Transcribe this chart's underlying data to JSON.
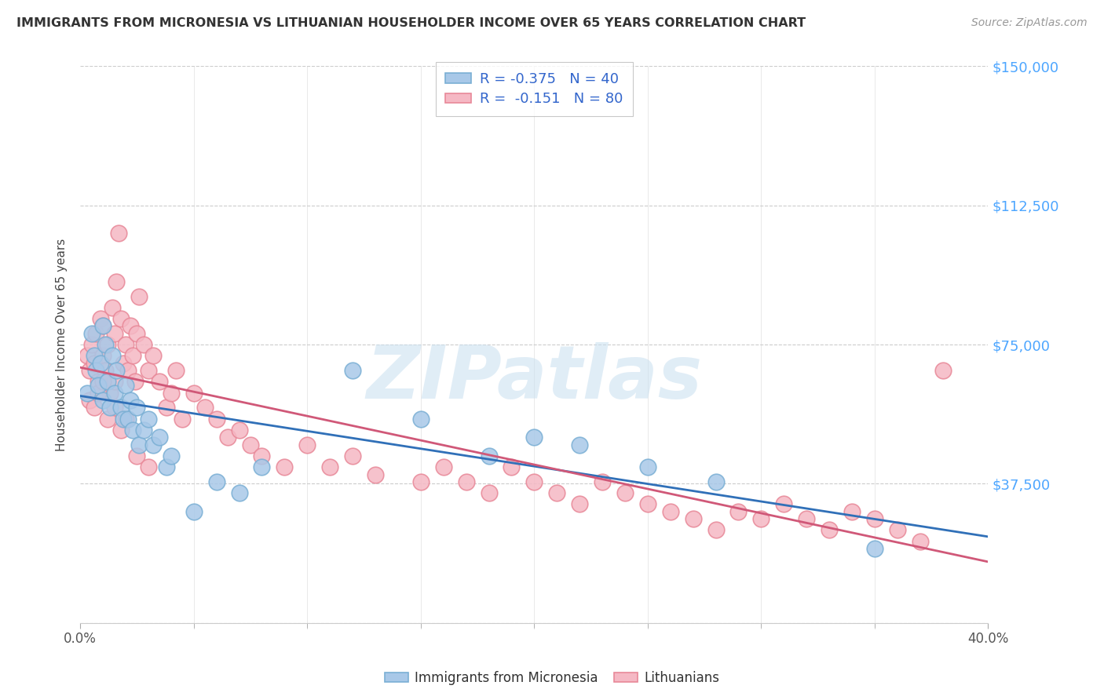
{
  "title": "IMMIGRANTS FROM MICRONESIA VS LITHUANIAN HOUSEHOLDER INCOME OVER 65 YEARS CORRELATION CHART",
  "source": "Source: ZipAtlas.com",
  "ylabel": "Householder Income Over 65 years",
  "xlim": [
    0,
    0.4
  ],
  "ylim": [
    0,
    150000
  ],
  "yticks": [
    0,
    37500,
    75000,
    112500,
    150000
  ],
  "ytick_labels": [
    "",
    "$37,500",
    "$75,000",
    "$112,500",
    "$150,000"
  ],
  "xtick_labels_shown": [
    "0.0%",
    "40.0%"
  ],
  "xticks_shown": [
    0.0,
    0.4
  ],
  "xticks_minor": [
    0.05,
    0.1,
    0.15,
    0.2,
    0.25,
    0.3,
    0.35
  ],
  "blue_color": "#a8c8e8",
  "blue_edge_color": "#7aafd4",
  "pink_color": "#f5b8c4",
  "pink_edge_color": "#e88898",
  "blue_line_color": "#3070b8",
  "pink_line_color": "#d05878",
  "blue_R": -0.375,
  "blue_N": 40,
  "pink_R": -0.151,
  "pink_N": 80,
  "watermark": "ZIPatlas",
  "blue_scatter_x": [
    0.003,
    0.005,
    0.006,
    0.007,
    0.008,
    0.009,
    0.01,
    0.01,
    0.011,
    0.012,
    0.013,
    0.014,
    0.015,
    0.016,
    0.018,
    0.019,
    0.02,
    0.021,
    0.022,
    0.023,
    0.025,
    0.026,
    0.028,
    0.03,
    0.032,
    0.035,
    0.038,
    0.04,
    0.05,
    0.06,
    0.07,
    0.08,
    0.12,
    0.15,
    0.18,
    0.2,
    0.22,
    0.25,
    0.28,
    0.35
  ],
  "blue_scatter_y": [
    62000,
    78000,
    72000,
    68000,
    64000,
    70000,
    80000,
    60000,
    75000,
    65000,
    58000,
    72000,
    62000,
    68000,
    58000,
    55000,
    64000,
    55000,
    60000,
    52000,
    58000,
    48000,
    52000,
    55000,
    48000,
    50000,
    42000,
    45000,
    30000,
    38000,
    35000,
    42000,
    68000,
    55000,
    45000,
    50000,
    48000,
    42000,
    38000,
    20000
  ],
  "pink_scatter_x": [
    0.003,
    0.004,
    0.005,
    0.006,
    0.007,
    0.008,
    0.009,
    0.01,
    0.01,
    0.011,
    0.012,
    0.013,
    0.014,
    0.015,
    0.015,
    0.016,
    0.017,
    0.018,
    0.019,
    0.02,
    0.021,
    0.022,
    0.023,
    0.024,
    0.025,
    0.026,
    0.028,
    0.03,
    0.032,
    0.035,
    0.038,
    0.04,
    0.042,
    0.045,
    0.05,
    0.055,
    0.06,
    0.065,
    0.07,
    0.075,
    0.08,
    0.09,
    0.1,
    0.11,
    0.12,
    0.13,
    0.15,
    0.16,
    0.17,
    0.18,
    0.19,
    0.2,
    0.21,
    0.22,
    0.23,
    0.24,
    0.25,
    0.26,
    0.27,
    0.28,
    0.29,
    0.3,
    0.31,
    0.32,
    0.33,
    0.34,
    0.35,
    0.36,
    0.37,
    0.38,
    0.004,
    0.006,
    0.008,
    0.01,
    0.012,
    0.015,
    0.018,
    0.02,
    0.025,
    0.03
  ],
  "pink_scatter_y": [
    72000,
    68000,
    75000,
    70000,
    78000,
    65000,
    82000,
    80000,
    72000,
    68000,
    75000,
    62000,
    85000,
    78000,
    65000,
    92000,
    105000,
    82000,
    70000,
    75000,
    68000,
    80000,
    72000,
    65000,
    78000,
    88000,
    75000,
    68000,
    72000,
    65000,
    58000,
    62000,
    68000,
    55000,
    62000,
    58000,
    55000,
    50000,
    52000,
    48000,
    45000,
    42000,
    48000,
    42000,
    45000,
    40000,
    38000,
    42000,
    38000,
    35000,
    42000,
    38000,
    35000,
    32000,
    38000,
    35000,
    32000,
    30000,
    28000,
    25000,
    30000,
    28000,
    32000,
    28000,
    25000,
    30000,
    28000,
    25000,
    22000,
    68000,
    60000,
    58000,
    62000,
    65000,
    55000,
    58000,
    52000,
    55000,
    45000,
    42000
  ]
}
